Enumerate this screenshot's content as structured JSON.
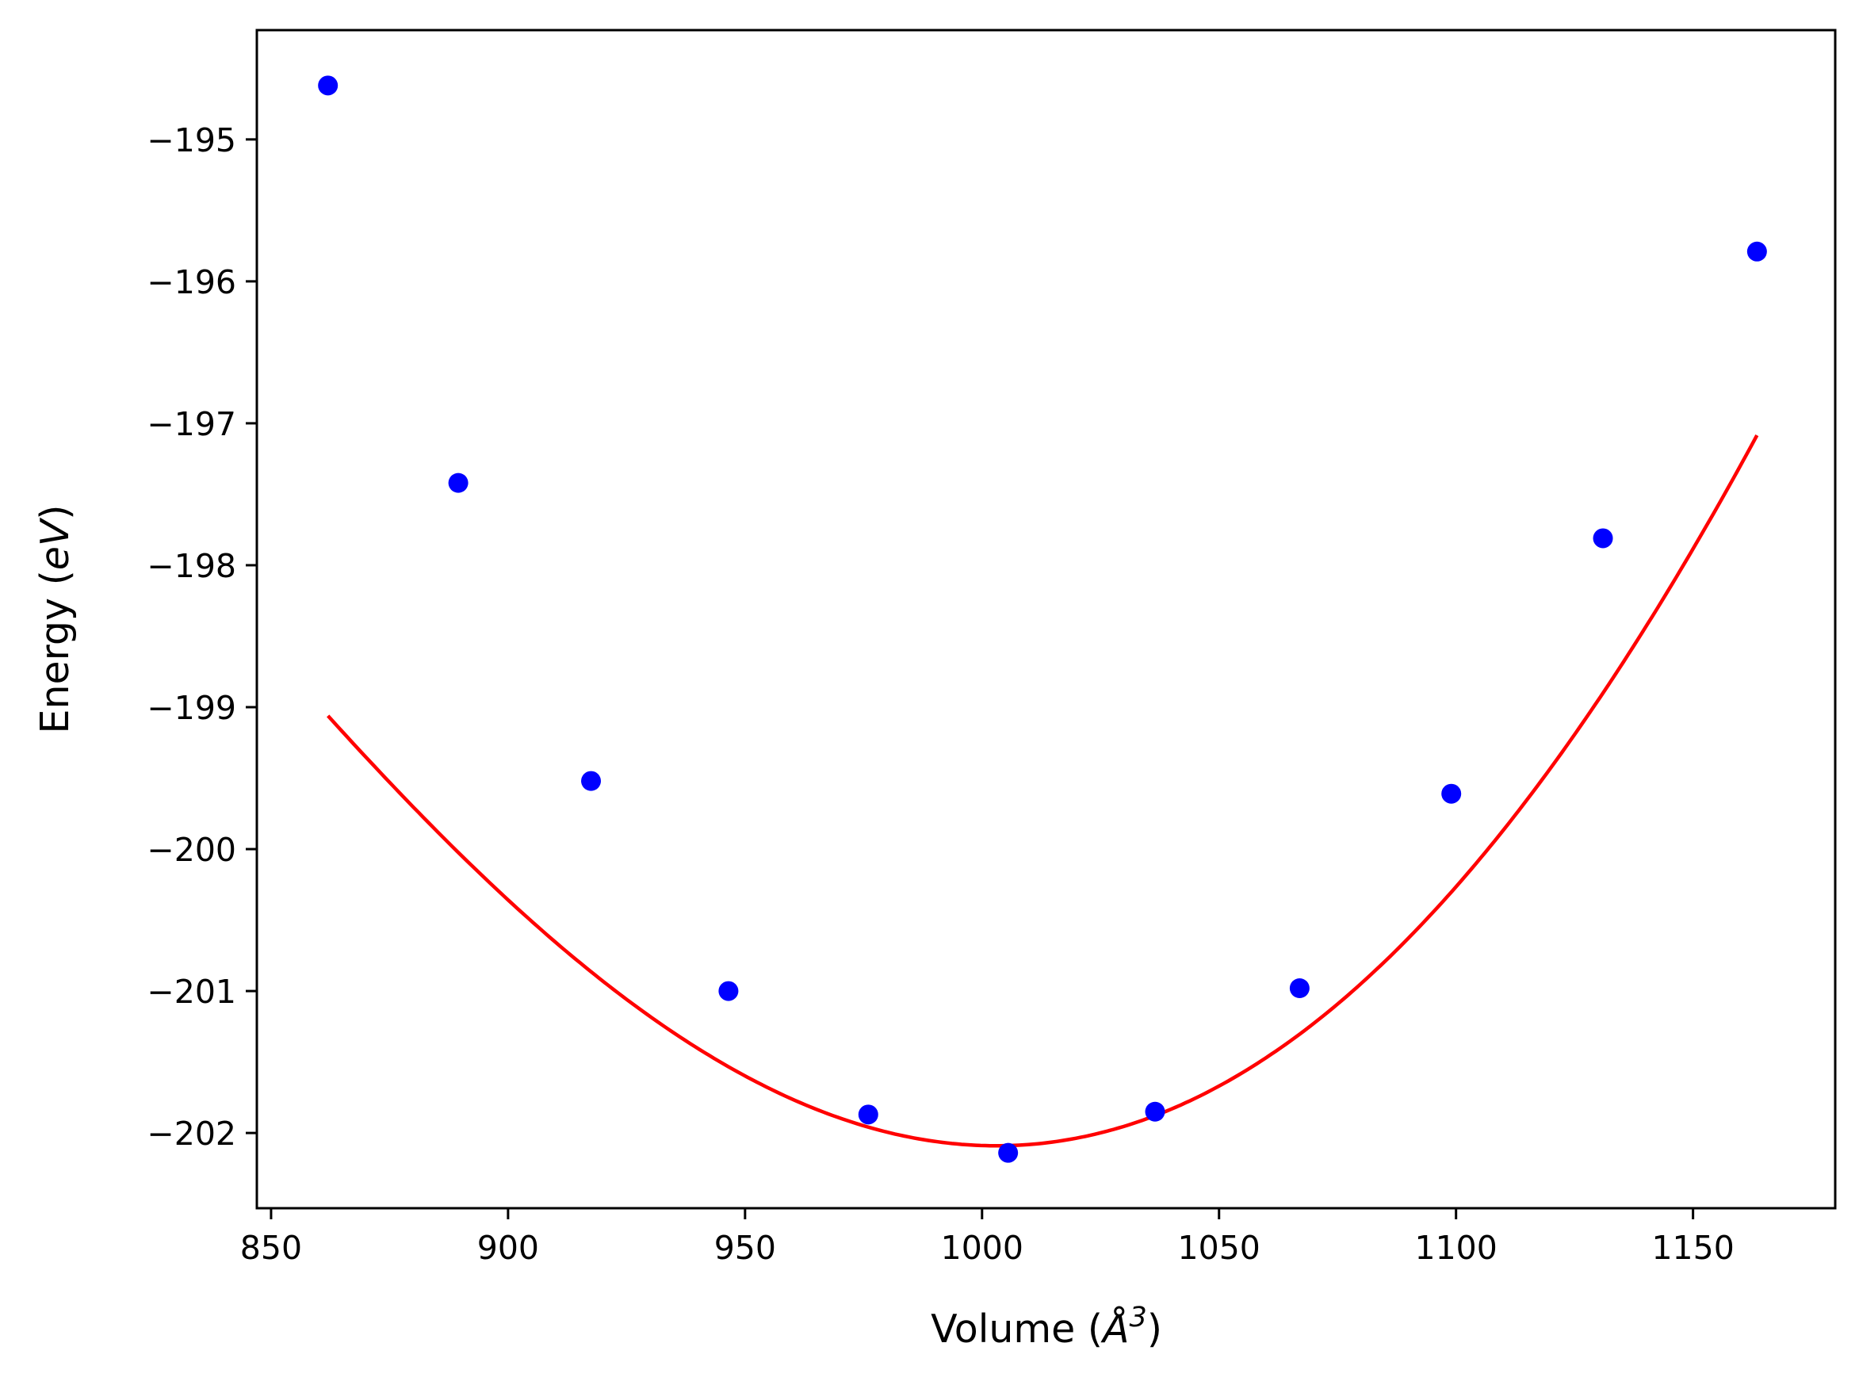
{
  "chart_data": {
    "type": "scatter",
    "title": "",
    "xlabel": {
      "base": "Volume (",
      "symbol": "Å",
      "power": "3",
      "close": ")"
    },
    "ylabel": {
      "base": "Energy (",
      "unit": "eV",
      "close": ")"
    },
    "xlim": [
      847,
      1180
    ],
    "ylim": [
      -202.53,
      -194.23
    ],
    "xticks": [
      850,
      900,
      950,
      1000,
      1050,
      1100,
      1150
    ],
    "yticks": [
      -195,
      -196,
      -197,
      -198,
      -199,
      -200,
      -201,
      -202
    ],
    "ytick_labels": [
      "−195",
      "−196",
      "−197",
      "−198",
      "−199",
      "−200",
      "−201",
      "−202"
    ],
    "grid": false,
    "colors": {
      "points": "#0000ff",
      "fit": "#ff0000"
    },
    "series": [
      {
        "kind": "points",
        "x": [
          862.0,
          889.5,
          917.5,
          946.5,
          976.0,
          1005.5,
          1036.5,
          1067.0,
          1099.0,
          1131.0,
          1163.5
        ],
        "y": [
          -194.62,
          -197.42,
          -199.52,
          -201.0,
          -201.87,
          -202.14,
          -201.85,
          -200.98,
          -199.61,
          -197.81,
          -195.79
        ]
      },
      {
        "kind": "fit-curve",
        "fit": {
          "type": "quartic",
          "vmin": 1003.0,
          "emin": -202.09,
          "a": 0.00018465,
          "b": 1.5e-07,
          "c": -5.6e-10
        },
        "x_range": [
          862.0,
          1163.5
        ]
      }
    ]
  }
}
